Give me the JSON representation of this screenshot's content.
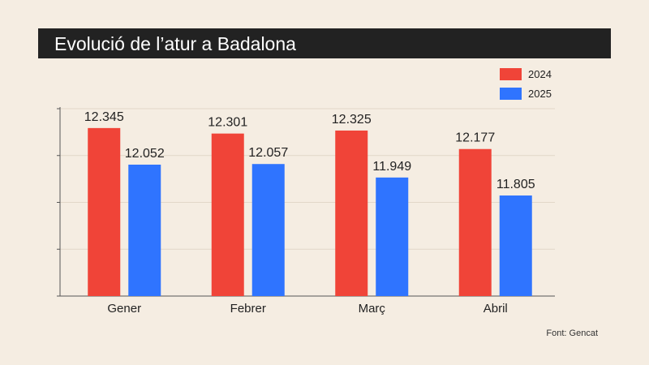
{
  "title": "Evolució de l’atur a Badalona",
  "source": "Font: Gencat",
  "chart_data": {
    "type": "bar",
    "categories": [
      "Gener",
      "Febrer",
      "Març",
      "Abril"
    ],
    "series": [
      {
        "name": "2024",
        "color": "#f04438",
        "values": [
          12345,
          12301,
          12325,
          12177
        ],
        "labels": [
          "12.345",
          "12.301",
          "12.325",
          "12.177"
        ]
      },
      {
        "name": "2025",
        "color": "#2f74ff",
        "values": [
          12052,
          12057,
          11949,
          11805
        ],
        "labels": [
          "12.052",
          "12.057",
          "11.949",
          "11.805"
        ]
      }
    ],
    "ylim": [
      11000,
      12500
    ],
    "grid": true,
    "legend_position": "top-right"
  }
}
